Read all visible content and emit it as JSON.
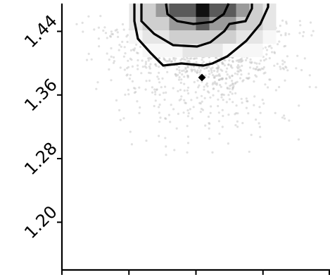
{
  "chart_data": {
    "type": "scatter",
    "title": "",
    "xlabel": "",
    "ylabel": "",
    "grid": false,
    "legend": "none",
    "ylim": [
      1.14,
      1.475
    ],
    "yticks": [
      1.2,
      1.28,
      1.36,
      1.44
    ],
    "ytick_labels": [
      "1.20",
      "1.28",
      "1.36",
      "1.44"
    ],
    "xticks": [
      0,
      1,
      2,
      3,
      4
    ],
    "xtick_labels": [],
    "xlim": [
      0,
      4
    ],
    "point_color": "#bdbdbd",
    "axis_color": "#000000",
    "density_center": {
      "x": 2.1,
      "y": 1.465
    },
    "histogram_shades": [
      "#f7f7f7",
      "#e6e6e6",
      "#cfcfcf",
      "#9a9a9a",
      "#5a5a5a",
      "#101010"
    ],
    "contour_levels": 3,
    "isolated_contour_point": {
      "x": 2.15,
      "y": 1.402
    }
  }
}
